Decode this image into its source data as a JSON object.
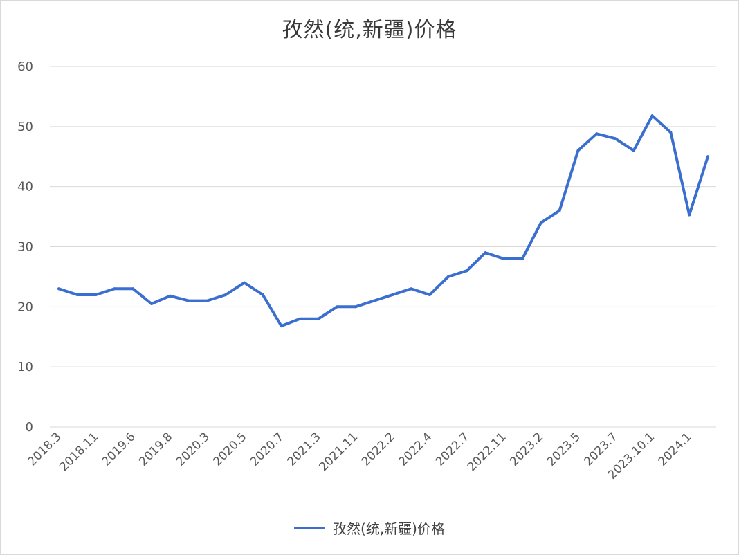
{
  "chart_data": {
    "type": "line",
    "title": "孜然(统,新疆)价格",
    "xlabel": "",
    "ylabel": "",
    "ylim": [
      0,
      60
    ],
    "yticks": [
      0,
      10,
      20,
      30,
      40,
      50,
      60
    ],
    "grid": true,
    "legend_position": "bottom",
    "x": [
      "2018.3",
      "",
      "2018.11",
      "",
      "2019.6",
      "",
      "2019.8",
      "",
      "2020.3",
      "",
      "2020.5",
      "",
      "2020.7",
      "",
      "2021.3",
      "",
      "2021.11",
      "",
      "2022.2",
      "",
      "2022.4",
      "",
      "2022.7",
      "",
      "2022.11",
      "",
      "2023.2",
      "",
      "2023.5",
      "",
      "2023.7",
      "",
      "2023.10.1",
      "",
      "2024.1",
      ""
    ],
    "series": [
      {
        "name": "孜然(统,新疆)价格",
        "color": "#3A6FD0",
        "values": [
          23,
          22,
          22,
          23,
          23,
          20.5,
          21.8,
          21,
          21,
          22,
          24,
          22,
          16.8,
          18,
          18,
          20,
          20,
          21,
          22,
          23,
          22,
          25,
          26,
          29,
          28,
          28,
          34,
          36,
          46,
          48.8,
          48,
          46,
          51.8,
          49,
          35.3,
          45
        ]
      }
    ]
  }
}
